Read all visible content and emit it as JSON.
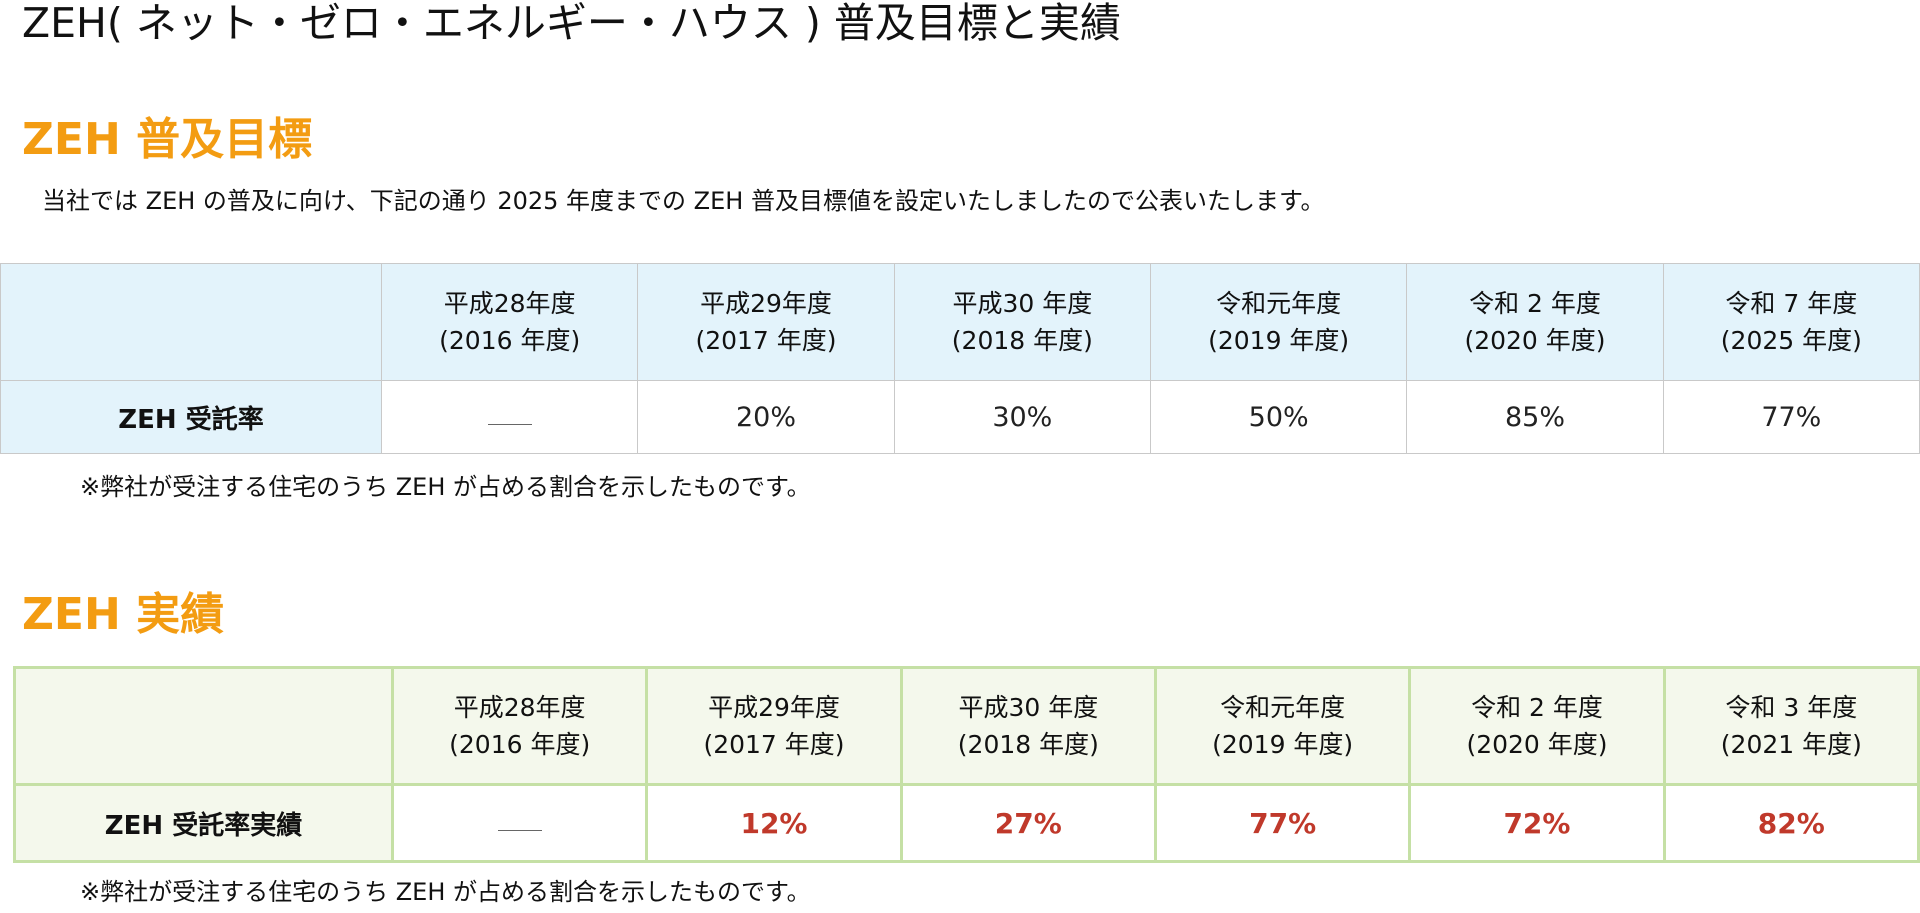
{
  "page_title": "ZEH( ネット・ゼロ・エネルギー・ハウス ) 普及目標と実績",
  "target_section": {
    "heading": "ZEH 普及目標",
    "intro": "当社では ZEH の普及に向け、下記の通り 2025 年度までの ZEH 普及目標値を設定いたしましたので公表いたします。",
    "row_label": "ZEH 受託率",
    "columns": [
      {
        "era": "平成28年度",
        "year": "(2016 年度)",
        "value": ""
      },
      {
        "era": "平成29年度",
        "year": "(2017 年度)",
        "value": "20%"
      },
      {
        "era": "平成30 年度",
        "year": "(2018 年度)",
        "value": "30%"
      },
      {
        "era": "令和元年度",
        "year": "(2019 年度)",
        "value": "50%"
      },
      {
        "era": "令和 2 年度",
        "year": "(2020 年度)",
        "value": "85%"
      },
      {
        "era": "令和 7 年度",
        "year": "(2025 年度)",
        "value": "77%"
      }
    ],
    "note": "※弊社が受注する住宅のうち ZEH が占める割合を示したものです。"
  },
  "actual_section": {
    "heading": "ZEH 実績",
    "row_label": "ZEH 受託率実績",
    "value_color": "#c0392b",
    "columns": [
      {
        "era": "平成28年度",
        "year": "(2016 年度)",
        "value": ""
      },
      {
        "era": "平成29年度",
        "year": "(2017 年度)",
        "value": "12%"
      },
      {
        "era": "平成30 年度",
        "year": "(2018 年度)",
        "value": "27%"
      },
      {
        "era": "令和元年度",
        "year": "(2019 年度)",
        "value": "77%"
      },
      {
        "era": "令和 2 年度",
        "year": "(2020 年度)",
        "value": "72%"
      },
      {
        "era": "令和 3 年度",
        "year": "(2021 年度)",
        "value": "82%"
      }
    ],
    "note": "※弊社が受注する住宅のうち ZEH が占める割合を示したものです。"
  },
  "colors": {
    "heading_accent": "#f39c12",
    "target_header_bg": "#e3f3fb",
    "actual_header_bg": "#f4f8ec",
    "actual_border": "#c5e0a5"
  }
}
